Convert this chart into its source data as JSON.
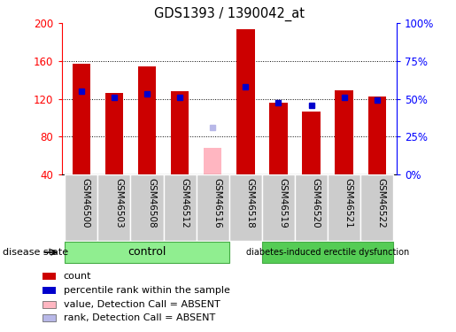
{
  "title": "GDS1393 / 1390042_at",
  "samples": [
    "GSM46500",
    "GSM46503",
    "GSM46508",
    "GSM46512",
    "GSM46516",
    "GSM46518",
    "GSM46519",
    "GSM46520",
    "GSM46521",
    "GSM46522"
  ],
  "count_values": [
    157,
    126,
    154,
    128,
    null,
    194,
    116,
    106,
    129,
    122
  ],
  "percentile_values": [
    128,
    121,
    125,
    121,
    null,
    133,
    116,
    113,
    121,
    119
  ],
  "absent_value": [
    null,
    null,
    null,
    null,
    68,
    null,
    null,
    null,
    null,
    null
  ],
  "absent_rank": [
    null,
    null,
    null,
    null,
    90,
    null,
    null,
    null,
    null,
    null
  ],
  "ylim": [
    40,
    200
  ],
  "yticks": [
    40,
    80,
    120,
    160,
    200
  ],
  "ytick_labels": [
    "40",
    "80",
    "120",
    "160",
    "200"
  ],
  "y2ticks": [
    40,
    80,
    120,
    160,
    200
  ],
  "y2tick_labels": [
    "0%",
    "25%",
    "50%",
    "75%",
    "100%"
  ],
  "bar_color": "#cc0000",
  "percentile_color": "#0000cc",
  "absent_bar_color": "#ffb6c1",
  "absent_rank_color": "#b8b8e8",
  "control_bg": "#90ee90",
  "disease_bg": "#55cc55",
  "sample_label_bg": "#cccccc",
  "sample_label_border": "#aaaaaa",
  "disease_state_label": "disease state",
  "control_label": "control",
  "disease_label": "diabetes-induced erectile dysfunction",
  "legend_items": [
    {
      "color": "#cc0000",
      "label": "count"
    },
    {
      "color": "#0000cc",
      "label": "percentile rank within the sample"
    },
    {
      "color": "#ffb6c1",
      "label": "value, Detection Call = ABSENT"
    },
    {
      "color": "#b8b8e8",
      "label": "rank, Detection Call = ABSENT"
    }
  ],
  "bar_width": 0.55,
  "n_control": 5,
  "n_samples": 10
}
